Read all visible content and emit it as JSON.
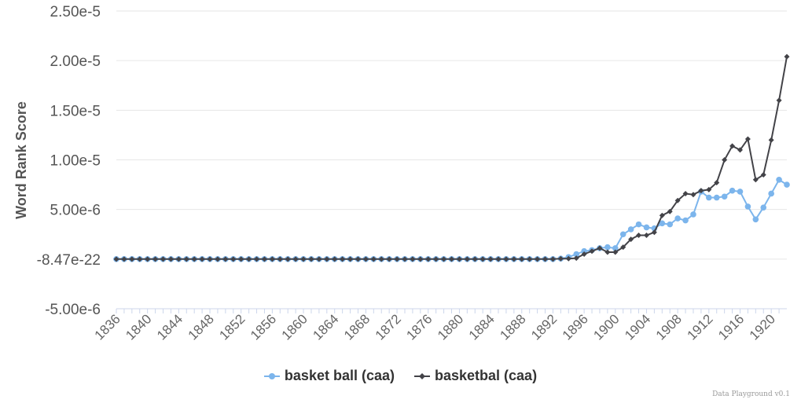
{
  "credits": "Data Playground v0.1",
  "chart_data": {
    "type": "line",
    "title": "",
    "xlabel": "",
    "ylabel": "Word Rank Score",
    "x_start": 1836,
    "x_end": 1921,
    "xlim": [
      1836,
      1922
    ],
    "ylim": [
      -5e-06,
      2.5e-05
    ],
    "y_ticks": [
      {
        "value": 2.5e-05,
        "label": "2.50e-5"
      },
      {
        "value": 2e-05,
        "label": "2.00e-5"
      },
      {
        "value": 1.5e-05,
        "label": "1.50e-5"
      },
      {
        "value": 1e-05,
        "label": "1.00e-5"
      },
      {
        "value": 5e-06,
        "label": "5.00e-6"
      },
      {
        "value": 0,
        "label": "-8.47e-22"
      },
      {
        "value": -5e-06,
        "label": "-5.00e-6"
      }
    ],
    "x_tick_labels": [
      "1836",
      "1840",
      "1844",
      "1848",
      "1852",
      "1856",
      "1860",
      "1864",
      "1868",
      "1872",
      "1876",
      "1880",
      "1884",
      "1888",
      "1892",
      "1896",
      "1900",
      "1904",
      "1908",
      "1912",
      "1916",
      "1920"
    ],
    "grid": true,
    "legend_position": "bottom",
    "series": [
      {
        "name": "basket ball (caa)",
        "color": "#7cb5ec",
        "marker": "circle",
        "values_1893_1922": [
          5e-08,
          2e-07,
          5e-07,
          8e-07,
          9e-07,
          1.1e-06,
          1.2e-06,
          1.1e-06,
          2.5e-06,
          3e-06,
          3.5e-06,
          3.2e-06,
          3.1e-06,
          3.6e-06,
          3.5e-06,
          4.1e-06,
          3.9e-06,
          4.5e-06,
          6.8e-06,
          6.2e-06,
          6.2e-06,
          6.3e-06,
          6.9e-06,
          6.8e-06,
          5.3e-06,
          4e-06,
          5.2e-06,
          6.6e-06,
          8e-06,
          7.5e-06
        ]
      },
      {
        "name": "basketbal (caa)",
        "color": "#434348",
        "marker": "diamond",
        "values_1893_1922": [
          5e-08,
          5e-08,
          1e-07,
          5e-07,
          8e-07,
          1.1e-06,
          7e-07,
          7e-07,
          1.2e-06,
          2e-06,
          2.4e-06,
          2.4e-06,
          2.7e-06,
          4.4e-06,
          4.8e-06,
          5.9e-06,
          6.6e-06,
          6.5e-06,
          6.9e-06,
          7e-06,
          7.7e-06,
          1e-05,
          1.14e-05,
          1.1e-05,
          1.21e-05,
          8e-06,
          8.5e-06,
          1.2e-05,
          1.6e-05,
          2.04e-05
        ]
      }
    ]
  }
}
